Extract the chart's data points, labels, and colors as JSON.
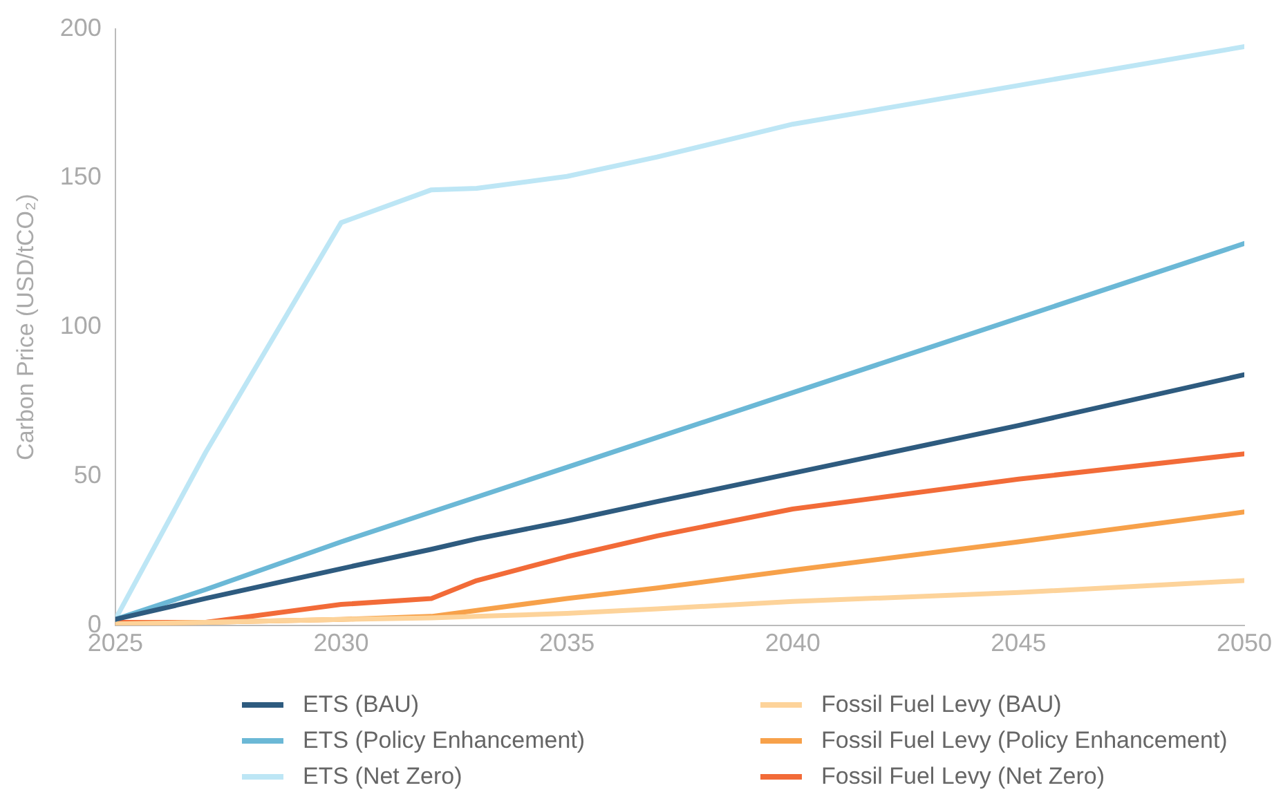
{
  "chart_data": {
    "type": "line",
    "ylabel": "Carbon Price (USD/tCO₂)",
    "x": [
      2025,
      2027,
      2030,
      2032,
      2033,
      2035,
      2037,
      2040,
      2045,
      2050
    ],
    "xlim": [
      2025,
      2050
    ],
    "xticks": [
      2025,
      2030,
      2035,
      2040,
      2045,
      2050
    ],
    "ylim": [
      0,
      200
    ],
    "yticks": [
      0,
      50,
      100,
      150,
      200
    ],
    "grid": false,
    "legend": "bottom",
    "marker": "none",
    "line_style": "solid",
    "series": [
      {
        "name": "ETS (BAU)",
        "color": "#2e5b7f",
        "values": [
          2,
          9,
          19,
          25.5,
          29,
          35,
          41.5,
          51,
          67,
          84
        ]
      },
      {
        "name": "ETS (Policy Enhancement)",
        "color": "#6bb8d6",
        "values": [
          2,
          12,
          28,
          38,
          43,
          53,
          63,
          78,
          103,
          128
        ]
      },
      {
        "name": "ETS (Net Zero)",
        "color": "#bde6f5",
        "values": [
          2,
          58,
          135,
          146,
          146.5,
          150.5,
          157,
          168,
          181,
          194
        ]
      },
      {
        "name": "Fossil Fuel Levy (BAU)",
        "color": "#fdd39a",
        "values": [
          0.5,
          1,
          2,
          2.5,
          3,
          4,
          5.5,
          8,
          11,
          15
        ]
      },
      {
        "name": "Fossil Fuel Levy (Policy Enhancement)",
        "color": "#f7a14a",
        "values": [
          0.5,
          1,
          2,
          3,
          5,
          9,
          12.5,
          18.5,
          28,
          38
        ]
      },
      {
        "name": "Fossil Fuel Levy (Net Zero)",
        "color": "#f26b38",
        "values": [
          1,
          1,
          7,
          9,
          15,
          23,
          30,
          39,
          49,
          57.5
        ]
      }
    ]
  }
}
